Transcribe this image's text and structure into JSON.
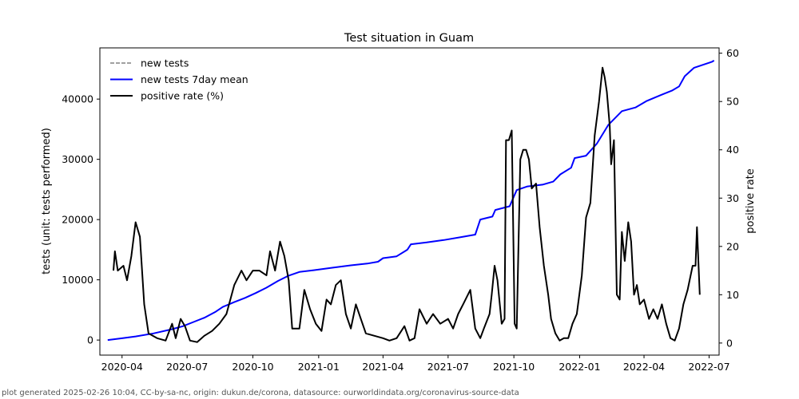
{
  "chart_data": {
    "type": "line",
    "title": "Test situation in Guam",
    "ylabel_left": "tests (unit: tests performed)",
    "ylabel_right": "positive rate",
    "x_ticks": [
      "2020-04",
      "2020-07",
      "2020-10",
      "2021-01",
      "2021-04",
      "2021-07",
      "2021-10",
      "2022-01",
      "2022-04",
      "2022-07"
    ],
    "x_range": [
      "2020-03-01",
      "2022-07-15"
    ],
    "y_left_ticks": [
      0,
      10000,
      20000,
      30000,
      40000
    ],
    "y_left_range": [
      -2500,
      48500
    ],
    "y_right_ticks": [
      0,
      10,
      20,
      30,
      40,
      50,
      60
    ],
    "y_right_range": [
      -2.5,
      61.1
    ],
    "legend_position": "top-left",
    "grid": false,
    "series": [
      {
        "name": "new tests",
        "axis": "left",
        "style": "dashed",
        "color": "#808080",
        "points": []
      },
      {
        "name": "new tests 7day mean",
        "axis": "left",
        "style": "solid",
        "color": "#0000ff",
        "points": [
          [
            "2020-03-12",
            0
          ],
          [
            "2020-04-01",
            300
          ],
          [
            "2020-04-20",
            600
          ],
          [
            "2020-05-15",
            1100
          ],
          [
            "2020-06-10",
            1800
          ],
          [
            "2020-06-25",
            2300
          ],
          [
            "2020-07-10",
            3000
          ],
          [
            "2020-07-25",
            3700
          ],
          [
            "2020-08-10",
            4700
          ],
          [
            "2020-08-20",
            5500
          ],
          [
            "2020-09-05",
            6300
          ],
          [
            "2020-09-20",
            7000
          ],
          [
            "2020-10-05",
            7800
          ],
          [
            "2020-10-20",
            8700
          ],
          [
            "2020-11-05",
            9800
          ],
          [
            "2020-11-20",
            10700
          ],
          [
            "2020-12-05",
            11300
          ],
          [
            "2020-12-25",
            11600
          ],
          [
            "2021-01-20",
            12000
          ],
          [
            "2021-02-15",
            12400
          ],
          [
            "2021-03-10",
            12700
          ],
          [
            "2021-03-25",
            13000
          ],
          [
            "2021-04-01",
            13600
          ],
          [
            "2021-04-20",
            13900
          ],
          [
            "2021-05-05",
            15000
          ],
          [
            "2021-05-10",
            15900
          ],
          [
            "2021-06-01",
            16200
          ],
          [
            "2021-06-25",
            16600
          ],
          [
            "2021-07-20",
            17100
          ],
          [
            "2021-08-08",
            17500
          ],
          [
            "2021-08-15",
            20000
          ],
          [
            "2021-09-01",
            20500
          ],
          [
            "2021-09-05",
            21600
          ],
          [
            "2021-09-25",
            22200
          ],
          [
            "2021-10-05",
            24900
          ],
          [
            "2021-10-20",
            25500
          ],
          [
            "2021-11-10",
            25800
          ],
          [
            "2021-11-25",
            26300
          ],
          [
            "2021-12-05",
            27500
          ],
          [
            "2021-12-20",
            28600
          ],
          [
            "2021-12-25",
            30200
          ],
          [
            "2022-01-10",
            30600
          ],
          [
            "2022-01-25",
            32600
          ],
          [
            "2022-02-10",
            35700
          ],
          [
            "2022-03-01",
            38000
          ],
          [
            "2022-03-20",
            38600
          ],
          [
            "2022-04-05",
            39700
          ],
          [
            "2022-04-25",
            40700
          ],
          [
            "2022-05-10",
            41400
          ],
          [
            "2022-05-20",
            42100
          ],
          [
            "2022-05-28",
            43800
          ],
          [
            "2022-06-10",
            45200
          ],
          [
            "2022-06-25",
            45800
          ],
          [
            "2022-07-05",
            46200
          ],
          [
            "2022-07-08",
            46400
          ]
        ]
      },
      {
        "name": "positive rate (%)",
        "axis": "right",
        "style": "solid",
        "color": "#000000",
        "points": [
          [
            "2020-03-20",
            15
          ],
          [
            "2020-03-22",
            19
          ],
          [
            "2020-03-26",
            15
          ],
          [
            "2020-04-03",
            16
          ],
          [
            "2020-04-08",
            13
          ],
          [
            "2020-04-14",
            18
          ],
          [
            "2020-04-20",
            25
          ],
          [
            "2020-04-26",
            22
          ],
          [
            "2020-05-02",
            8
          ],
          [
            "2020-05-08",
            2
          ],
          [
            "2020-05-20",
            1
          ],
          [
            "2020-06-01",
            0.5
          ],
          [
            "2020-06-10",
            4
          ],
          [
            "2020-06-15",
            1
          ],
          [
            "2020-06-22",
            5
          ],
          [
            "2020-06-28",
            3.5
          ],
          [
            "2020-07-05",
            0.5
          ],
          [
            "2020-07-15",
            0.2
          ],
          [
            "2020-07-25",
            1.5
          ],
          [
            "2020-08-05",
            2.5
          ],
          [
            "2020-08-15",
            4
          ],
          [
            "2020-08-25",
            6
          ],
          [
            "2020-09-05",
            12
          ],
          [
            "2020-09-15",
            15
          ],
          [
            "2020-09-22",
            13
          ],
          [
            "2020-10-01",
            15
          ],
          [
            "2020-10-10",
            15
          ],
          [
            "2020-10-20",
            14
          ],
          [
            "2020-10-25",
            19
          ],
          [
            "2020-11-01",
            15
          ],
          [
            "2020-11-08",
            21
          ],
          [
            "2020-11-14",
            18
          ],
          [
            "2020-11-20",
            13
          ],
          [
            "2020-11-25",
            3
          ],
          [
            "2020-12-05",
            3
          ],
          [
            "2020-12-12",
            11
          ],
          [
            "2020-12-20",
            7
          ],
          [
            "2020-12-28",
            4
          ],
          [
            "2021-01-05",
            2.5
          ],
          [
            "2021-01-12",
            9
          ],
          [
            "2021-01-18",
            8
          ],
          [
            "2021-01-25",
            12
          ],
          [
            "2021-02-01",
            13
          ],
          [
            "2021-02-08",
            6
          ],
          [
            "2021-02-15",
            3
          ],
          [
            "2021-02-22",
            8
          ],
          [
            "2021-03-01",
            5
          ],
          [
            "2021-03-08",
            2
          ],
          [
            "2021-03-20",
            1.5
          ],
          [
            "2021-04-01",
            1
          ],
          [
            "2021-04-10",
            0.5
          ],
          [
            "2021-04-20",
            1
          ],
          [
            "2021-05-01",
            3.5
          ],
          [
            "2021-05-08",
            0.5
          ],
          [
            "2021-05-15",
            1
          ],
          [
            "2021-05-22",
            7
          ],
          [
            "2021-06-01",
            4
          ],
          [
            "2021-06-10",
            6
          ],
          [
            "2021-06-20",
            4
          ],
          [
            "2021-07-01",
            5
          ],
          [
            "2021-07-08",
            3
          ],
          [
            "2021-07-15",
            6
          ],
          [
            "2021-07-22",
            8
          ],
          [
            "2021-08-01",
            11
          ],
          [
            "2021-08-08",
            3
          ],
          [
            "2021-08-15",
            1
          ],
          [
            "2021-08-20",
            3
          ],
          [
            "2021-08-28",
            6
          ],
          [
            "2021-08-31",
            10
          ],
          [
            "2021-09-04",
            16
          ],
          [
            "2021-09-08",
            13
          ],
          [
            "2021-09-14",
            4
          ],
          [
            "2021-09-18",
            5
          ],
          [
            "2021-09-20",
            42
          ],
          [
            "2021-09-24",
            42
          ],
          [
            "2021-09-28",
            44
          ],
          [
            "2021-10-02",
            4
          ],
          [
            "2021-10-05",
            3
          ],
          [
            "2021-10-10",
            38
          ],
          [
            "2021-10-14",
            40
          ],
          [
            "2021-10-18",
            40
          ],
          [
            "2021-10-22",
            38
          ],
          [
            "2021-10-26",
            32
          ],
          [
            "2021-11-01",
            33
          ],
          [
            "2021-11-06",
            24
          ],
          [
            "2021-11-12",
            16
          ],
          [
            "2021-11-18",
            10
          ],
          [
            "2021-11-22",
            5
          ],
          [
            "2021-11-28",
            2
          ],
          [
            "2021-12-04",
            0.5
          ],
          [
            "2021-12-10",
            1
          ],
          [
            "2021-12-16",
            1
          ],
          [
            "2021-12-22",
            4
          ],
          [
            "2021-12-28",
            6
          ],
          [
            "2022-01-04",
            14
          ],
          [
            "2022-01-10",
            26
          ],
          [
            "2022-01-16",
            29
          ],
          [
            "2022-01-22",
            43
          ],
          [
            "2022-01-28",
            50
          ],
          [
            "2022-02-02",
            57
          ],
          [
            "2022-02-05",
            55
          ],
          [
            "2022-02-08",
            52
          ],
          [
            "2022-02-12",
            45
          ],
          [
            "2022-02-14",
            37
          ],
          [
            "2022-02-18",
            42
          ],
          [
            "2022-02-22",
            10
          ],
          [
            "2022-02-26",
            9
          ],
          [
            "2022-03-01",
            23
          ],
          [
            "2022-03-05",
            17
          ],
          [
            "2022-03-10",
            25
          ],
          [
            "2022-03-14",
            21
          ],
          [
            "2022-03-18",
            10
          ],
          [
            "2022-03-22",
            12
          ],
          [
            "2022-03-26",
            8
          ],
          [
            "2022-04-01",
            9
          ],
          [
            "2022-04-08",
            5
          ],
          [
            "2022-04-14",
            7
          ],
          [
            "2022-04-20",
            5
          ],
          [
            "2022-04-26",
            8
          ],
          [
            "2022-05-02",
            4
          ],
          [
            "2022-05-08",
            1
          ],
          [
            "2022-05-14",
            0.5
          ],
          [
            "2022-05-20",
            3
          ],
          [
            "2022-05-26",
            8
          ],
          [
            "2022-06-01",
            11
          ],
          [
            "2022-06-08",
            16
          ],
          [
            "2022-06-12",
            16
          ],
          [
            "2022-06-14",
            24
          ],
          [
            "2022-06-18",
            10
          ]
        ]
      }
    ]
  },
  "footer": "plot generated 2025-02-26 10:04, CC-by-sa-nc, origin: dukun.de/corona, datasource: ourworldindata.org/coronavirus-source-data"
}
